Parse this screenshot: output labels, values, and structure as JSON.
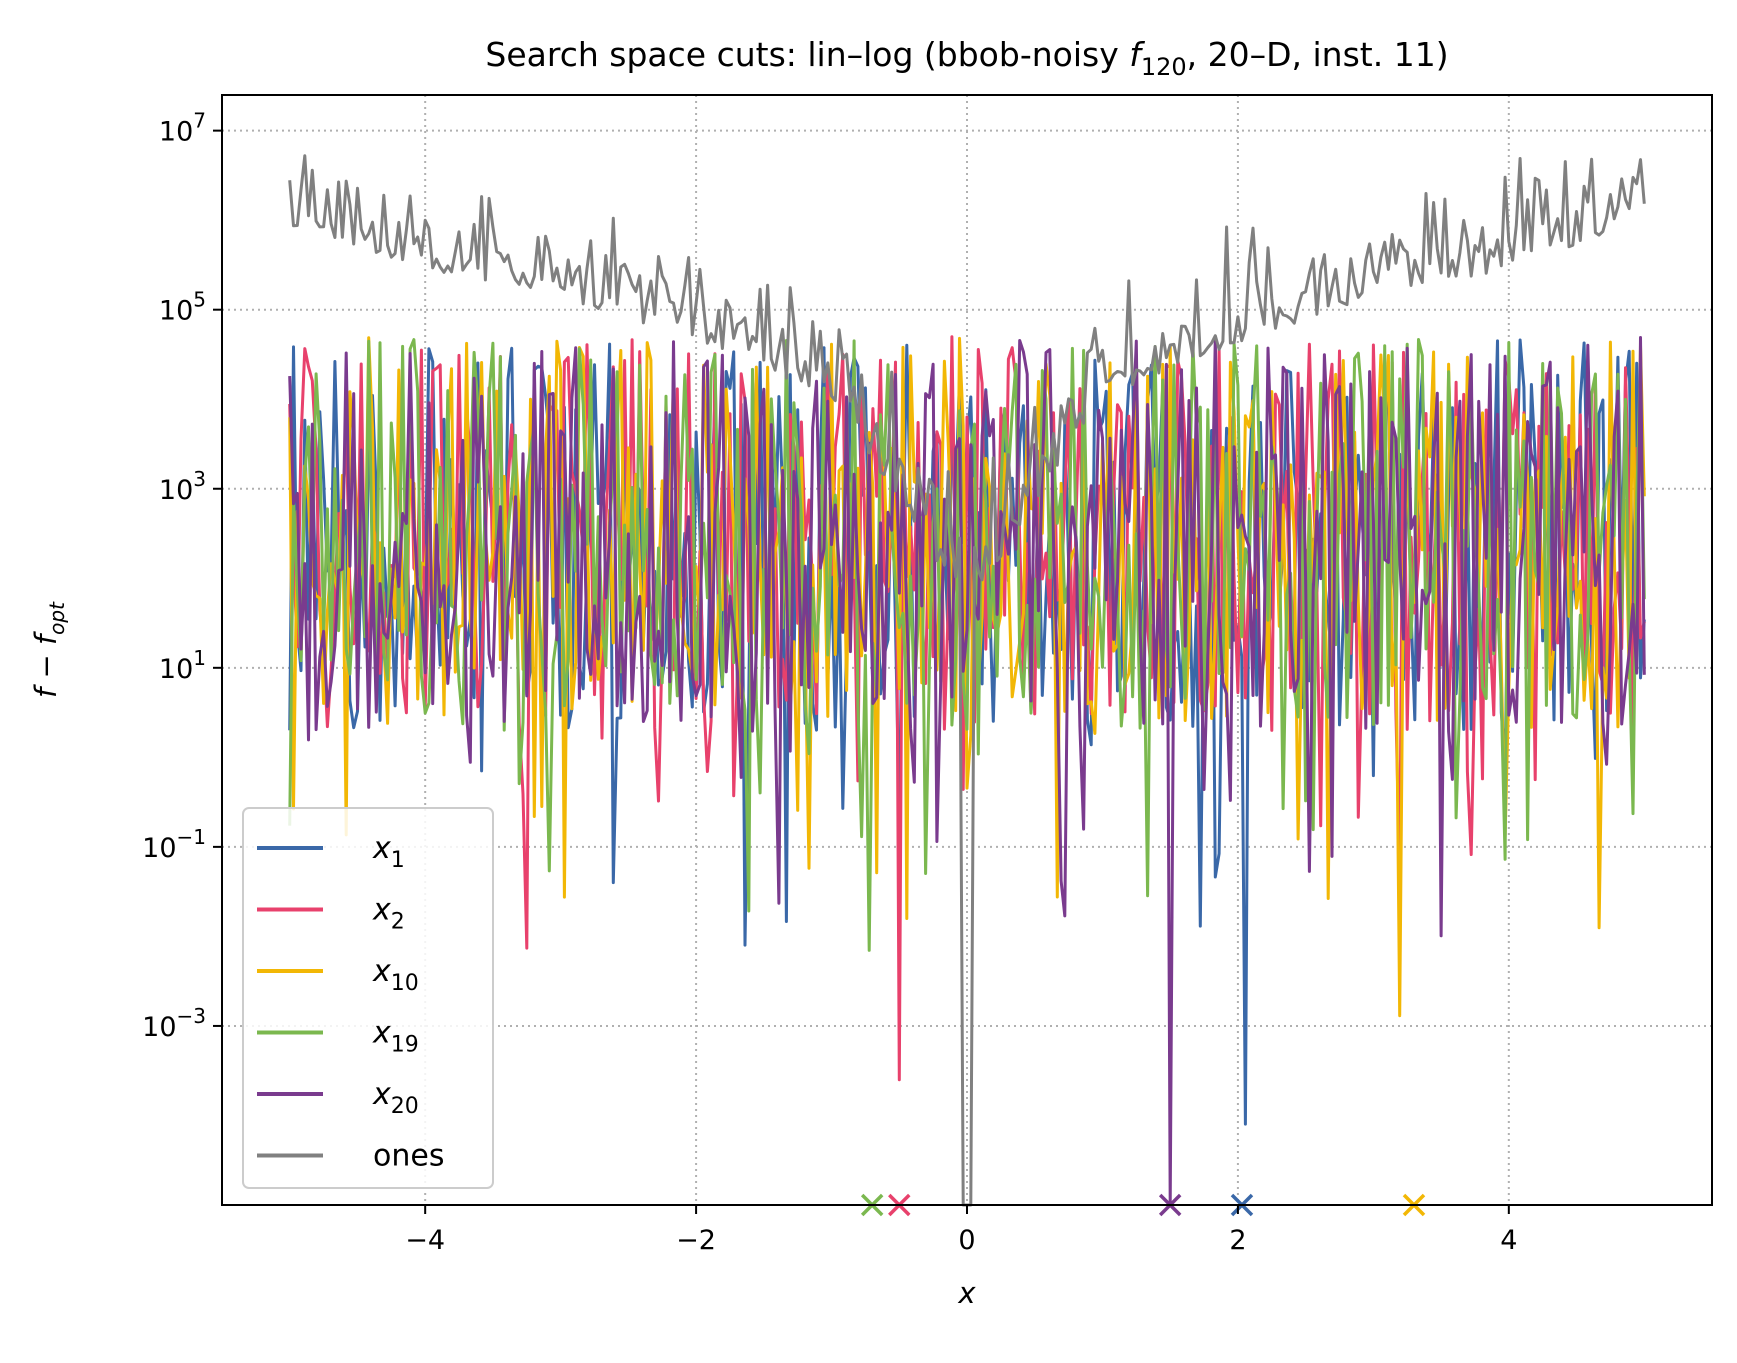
{
  "chart_data": {
    "type": "line",
    "title": "Search space cuts: lin–log (bbob-noisy ",
    "title_func_symbol": "f",
    "title_func_sub": "120",
    "title_suffix": ", 20–D, inst. 11)",
    "xlabel": "x",
    "ylabel_base": "f − f",
    "ylabel_sub": "opt",
    "xscale": "linear",
    "yscale": "log",
    "xlim": [
      -5.5,
      5.5
    ],
    "ylim": [
      1e-05,
      25000000.0
    ],
    "grid": true,
    "legend_position": "lower-left",
    "x_ticks": [
      "−4",
      "−2",
      "0",
      "2",
      "4"
    ],
    "x_tick_values": [
      -4,
      -2,
      0,
      2,
      4
    ],
    "y_ticks": [
      {
        "base": "10",
        "exp": "7",
        "value": 10000000.0
      },
      {
        "base": "10",
        "exp": "5",
        "value": 100000.0
      },
      {
        "base": "10",
        "exp": "3",
        "value": 1000.0
      },
      {
        "base": "10",
        "exp": "1",
        "value": 10.0
      },
      {
        "base": "10",
        "exp": "−1",
        "value": 0.1
      },
      {
        "base": "10",
        "exp": "−3",
        "value": 0.001
      }
    ],
    "series": [
      {
        "name": "x",
        "sub": "1",
        "color": "#3a68a8",
        "optimum_x": 2.03,
        "min_dip_value": 8e-05,
        "min_dip_x": 2.05,
        "noise_log_low": 0.3,
        "noise_log_high": 4.7,
        "seed": 11
      },
      {
        "name": "x",
        "sub": "2",
        "color": "#e8416c",
        "optimum_x": -0.5,
        "min_dip_value": 0.00025,
        "min_dip_x": -0.5,
        "noise_log_low": 0.3,
        "noise_log_high": 4.7,
        "seed": 23
      },
      {
        "name": "x",
        "sub": "10",
        "color": "#f2b705",
        "optimum_x": 3.3,
        "min_dip_value": 0.0013,
        "min_dip_x": 3.2,
        "noise_log_low": 0.3,
        "noise_log_high": 4.7,
        "seed": 37
      },
      {
        "name": "x",
        "sub": "19",
        "color": "#7bb84f",
        "optimum_x": -0.7,
        "min_dip_value": 0.007,
        "min_dip_x": -0.72,
        "noise_log_low": 0.3,
        "noise_log_high": 4.7,
        "seed": 41
      },
      {
        "name": "x",
        "sub": "20",
        "color": "#7a3b8e",
        "optimum_x": 1.5,
        "min_dip_value": 1e-05,
        "min_dip_x": 1.5,
        "noise_log_low": 0.3,
        "noise_log_high": 4.7,
        "seed": 53
      },
      {
        "name": "ones",
        "sub": "",
        "color": "#808080",
        "optimum_x": 0.0,
        "min_dip_value": 1e-05,
        "min_dip_x": 0.0,
        "seed": 67
      }
    ],
    "ones_profile": [
      {
        "x": -5.0,
        "y": 1200000.0
      },
      {
        "x": -4.0,
        "y": 400000.0
      },
      {
        "x": -3.0,
        "y": 200000.0
      },
      {
        "x": -2.0,
        "y": 60000.0
      },
      {
        "x": -1.0,
        "y": 15000.0
      },
      {
        "x": 0.0,
        "y": 1e-05
      },
      {
        "x": 1.0,
        "y": 15000.0
      },
      {
        "x": 2.0,
        "y": 60000.0
      },
      {
        "x": 3.0,
        "y": 200000.0
      },
      {
        "x": 4.0,
        "y": 400000.0
      },
      {
        "x": 5.0,
        "y": 1200000.0
      }
    ]
  }
}
